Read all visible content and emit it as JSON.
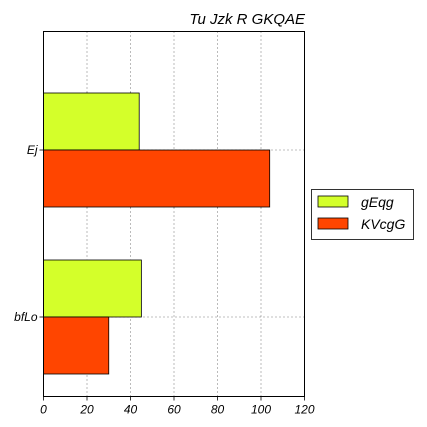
{
  "chart_data": {
    "type": "bar",
    "orientation": "horizontal",
    "title": "Tu Jzk R GKQAE",
    "xlabel": "",
    "ylabel": "",
    "categories": [
      "Ej",
      "bfLo"
    ],
    "series": [
      {
        "name": "gEqg",
        "values": [
          44,
          45
        ],
        "color": "#d4ff2a"
      },
      {
        "name": "KVcgG",
        "values": [
          104,
          30
        ],
        "color": "#ff4500"
      }
    ],
    "xlim": [
      0,
      120
    ],
    "xticks": [
      0,
      20,
      40,
      60,
      80,
      100,
      120
    ],
    "grid": true,
    "grid_style": "dotted",
    "legend_position": "right"
  }
}
